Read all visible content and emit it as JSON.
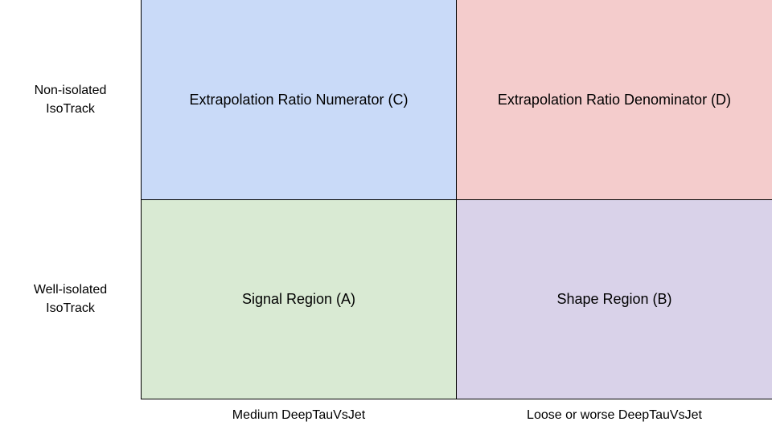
{
  "rows": [
    {
      "label_line1": "Non-isolated",
      "label_line2": "IsoTrack"
    },
    {
      "label_line1": "Well-isolated",
      "label_line2": "IsoTrack"
    }
  ],
  "columns": [
    {
      "label": "Medium DeepTauVsJet"
    },
    {
      "label": "Loose or worse DeepTauVsJet"
    }
  ],
  "cells": {
    "C": {
      "text": "Extrapolation Ratio Numerator (C)",
      "color": "#c9daf8"
    },
    "D": {
      "text": "Extrapolation Ratio Denominator (D)",
      "color": "#f4cccc"
    },
    "A": {
      "text": "Signal Region (A)",
      "color": "#d9ead3"
    },
    "B": {
      "text": "Shape Region (B)",
      "color": "#d9d2e9"
    }
  }
}
